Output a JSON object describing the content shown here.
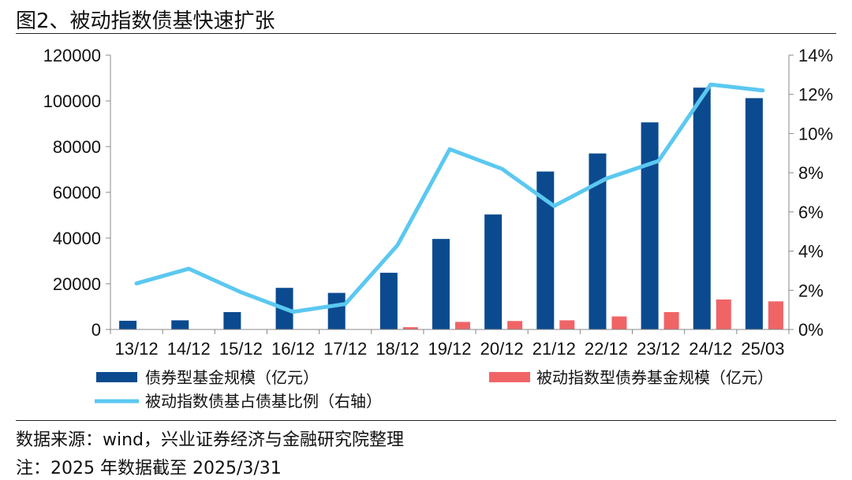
{
  "header": {
    "title": "图2、被动指数债基快速扩张"
  },
  "footer": {
    "source": "数据来源：wind，兴业证券经济与金融研究院整理",
    "note": "注：2025 年数据截至 2025/3/31"
  },
  "colors": {
    "bar_total": "#0b4a8f",
    "bar_passive": "#f06466",
    "line_ratio": "#5bc8f0"
  },
  "chart_data": {
    "type": "bar",
    "categories": [
      "13/12",
      "14/12",
      "15/12",
      "16/12",
      "17/12",
      "18/12",
      "19/12",
      "20/12",
      "21/12",
      "22/12",
      "23/12",
      "24/12",
      "25/03"
    ],
    "left_axis": {
      "ylim": [
        0,
        120000
      ],
      "ticks": [
        "0",
        "20000",
        "40000",
        "60000",
        "80000",
        "100000",
        "120000"
      ]
    },
    "right_axis": {
      "ylim": [
        0,
        14
      ],
      "ticks": [
        "0%",
        "2%",
        "4%",
        "6%",
        "8%",
        "10%",
        "12%",
        "14%"
      ]
    },
    "series": [
      {
        "name": "债券型基金规模（亿元）",
        "type": "bar",
        "axis": "left",
        "values": [
          3800,
          4000,
          7600,
          18200,
          16000,
          24800,
          39600,
          50300,
          69100,
          77000,
          90600,
          105800,
          101200
        ]
      },
      {
        "name": "被动指数型债券基金规模（亿元）",
        "type": "bar",
        "axis": "left",
        "values": [
          0,
          0,
          0,
          0,
          0,
          1000,
          3300,
          3700,
          4000,
          5700,
          7600,
          13100,
          12300
        ]
      },
      {
        "name": "被动指数债基占债基比例（右轴）",
        "type": "line",
        "axis": "right",
        "values": [
          2.35,
          3.1,
          1.9,
          0.9,
          1.3,
          4.3,
          9.2,
          8.2,
          6.3,
          7.7,
          8.6,
          12.5,
          12.2
        ]
      }
    ],
    "legend_position": "bottom",
    "grid": false
  }
}
